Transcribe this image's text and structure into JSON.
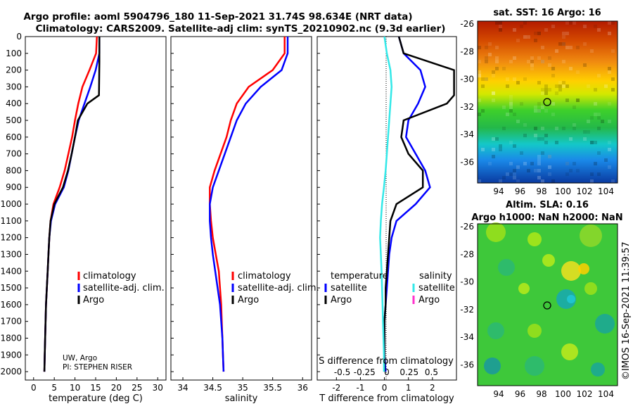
{
  "title": {
    "line1": "Argo profile: aoml 5904796_180 11-Sep-2021 31.74S 98.634E (NRT data)",
    "line2": "Climatology: CARS2009. Satellite-adj clim: synTS_20210902.nc (9.3d earlier)"
  },
  "colors": {
    "clim": "#ff0000",
    "sat": "#0000ff",
    "argo": "#000000",
    "sat_s": "#33e8e8",
    "argo_s": "#ff33cc"
  },
  "depth_ticks": [
    "0",
    "100",
    "200",
    "300",
    "400",
    "500",
    "600",
    "700",
    "800",
    "900",
    "1000",
    "1100",
    "1200",
    "1300",
    "1400",
    "1500",
    "1600",
    "1700",
    "1800",
    "1900",
    "2000"
  ],
  "panels": {
    "temperature": {
      "xlabel": "temperature (deg C)",
      "xticks": [
        "0",
        "5",
        "10",
        "15",
        "20",
        "25",
        "30"
      ],
      "legend": [
        "climatology",
        "satellite-adj. clim.",
        "Argo"
      ],
      "note1": "UW, Argo",
      "note2": "PI: STEPHEN RISER"
    },
    "salinity": {
      "xlabel": "salinity",
      "xticks": [
        "34",
        "34.5",
        "35",
        "35.5",
        "36"
      ],
      "legend": [
        "climatology",
        "satellite-adj. clim.",
        "Argo"
      ]
    },
    "difference": {
      "xlabel": "T difference from climatology",
      "toplabel": "S difference from climatology",
      "xticks": [
        "-2",
        "-1",
        "0",
        "1",
        "2"
      ],
      "sticks": [
        "-0.5",
        "-0.25",
        "0",
        "0.25",
        "0.5"
      ],
      "legend_head_t": "temperature",
      "legend_head_s": "salinity",
      "legend_t": [
        "satellite",
        "Argo"
      ],
      "legend_s": [
        "satellite",
        "Argo"
      ]
    }
  },
  "sst_map": {
    "title": "sat. SST: 16 Argo: 16",
    "yticks": [
      "-26",
      "-28",
      "-30",
      "-32",
      "-34",
      "-36"
    ],
    "xticks": [
      "94",
      "96",
      "98",
      "100",
      "102",
      "104"
    ]
  },
  "sla_map": {
    "title1": "Altim. SLA: 0.16",
    "title2": "Argo h1000: NaN h2000: NaN",
    "yticks": [
      "-26",
      "-28",
      "-30",
      "-32",
      "-34",
      "-36"
    ],
    "xticks": [
      "94",
      "96",
      "98",
      "100",
      "102",
      "104"
    ]
  },
  "credit": "©IMOS 16-Sep-2021 11:39:57",
  "chart_data": [
    {
      "type": "line",
      "title": "",
      "xlabel": "temperature (deg C)",
      "ylabel": "",
      "xlim": [
        -2,
        32
      ],
      "ylim": [
        2050,
        0
      ],
      "series": [
        {
          "name": "climatology",
          "x": [
            15.3,
            15.1,
            13.5,
            11.8,
            10.8,
            10.0,
            9.3,
            8.4,
            7.5,
            6.3,
            4.8,
            4.1,
            3.8,
            3.6,
            3.4,
            3.2,
            3.0,
            2.9,
            2.8,
            2.7,
            2.6
          ],
          "y": [
            0,
            100,
            200,
            300,
            400,
            500,
            600,
            700,
            800,
            900,
            1000,
            1100,
            1200,
            1300,
            1400,
            1500,
            1600,
            1700,
            1800,
            1900,
            2000
          ]
        },
        {
          "name": "satellite-adj. clim.",
          "x": [
            15.9,
            15.9,
            15.0,
            13.7,
            12.3,
            10.9,
            10.0,
            9.2,
            8.4,
            7.3,
            5.2,
            4.2,
            3.8,
            3.6,
            3.4,
            3.2,
            3.0,
            2.9,
            2.8,
            2.7,
            2.6
          ],
          "y": [
            0,
            100,
            200,
            300,
            400,
            500,
            600,
            700,
            800,
            900,
            1000,
            1100,
            1200,
            1300,
            1400,
            1500,
            1600,
            1700,
            1800,
            1900,
            2000
          ]
        },
        {
          "name": "Argo",
          "x": [
            15.9,
            15.9,
            15.9,
            15.8,
            13.0,
            10.7,
            10.0,
            9.2,
            8.3,
            7.1,
            5.0,
            4.1,
            3.8,
            3.6,
            3.4,
            3.2,
            3.0,
            2.9,
            2.8,
            2.7,
            2.6
          ],
          "y": [
            0,
            100,
            150,
            350,
            400,
            500,
            600,
            700,
            800,
            900,
            1000,
            1100,
            1200,
            1300,
            1400,
            1500,
            1600,
            1700,
            1800,
            1900,
            2000
          ]
        }
      ]
    },
    {
      "type": "line",
      "title": "",
      "xlabel": "salinity",
      "ylabel": "",
      "xlim": [
        33.8,
        36.15
      ],
      "ylim": [
        2050,
        0
      ],
      "series": [
        {
          "name": "climatology",
          "x": [
            35.7,
            35.7,
            35.5,
            35.1,
            34.9,
            34.8,
            34.73,
            34.63,
            34.53,
            34.45,
            34.45,
            34.47,
            34.5,
            34.55,
            34.6,
            34.62,
            34.64,
            34.65,
            34.66,
            34.67,
            34.68
          ],
          "y": [
            0,
            100,
            200,
            300,
            400,
            500,
            600,
            700,
            800,
            900,
            1000,
            1100,
            1200,
            1300,
            1400,
            1500,
            1600,
            1700,
            1800,
            1900,
            2000
          ]
        },
        {
          "name": "satellite-adj. clim.",
          "x": [
            35.75,
            35.75,
            35.65,
            35.3,
            35.05,
            34.9,
            34.8,
            34.7,
            34.6,
            34.5,
            34.45,
            34.45,
            34.47,
            34.5,
            34.54,
            34.58,
            34.62,
            34.64,
            34.66,
            34.67,
            34.68
          ],
          "y": [
            0,
            100,
            200,
            300,
            400,
            500,
            600,
            700,
            800,
            900,
            1000,
            1100,
            1200,
            1300,
            1400,
            1500,
            1600,
            1700,
            1800,
            1900,
            2000
          ]
        }
      ]
    },
    {
      "type": "line",
      "title": "",
      "xlabel": "T difference from climatology",
      "ylabel": "",
      "xlim": [
        -2.8,
        3.0
      ],
      "ylim": [
        2050,
        0
      ],
      "series": [
        {
          "name": "temperature satellite",
          "x": [
            0.6,
            0.8,
            1.5,
            1.7,
            1.4,
            1.0,
            0.9,
            1.3,
            1.7,
            1.9,
            1.3,
            0.5,
            0.3,
            0.2,
            0.15,
            0.1,
            0.05,
            0.0,
            0.0,
            0.0,
            0.05
          ],
          "y": [
            0,
            100,
            200,
            300,
            400,
            500,
            600,
            700,
            800,
            900,
            1000,
            1100,
            1200,
            1300,
            1400,
            1500,
            1600,
            1700,
            1800,
            1900,
            2000
          ]
        },
        {
          "name": "temperature Argo",
          "x": [
            0.6,
            0.8,
            2.9,
            2.9,
            2.6,
            0.8,
            0.7,
            1.0,
            1.6,
            1.6,
            0.5,
            0.25,
            0.2,
            0.15,
            0.1,
            0.05,
            0.05,
            0.0,
            0.0,
            0.0,
            0.0
          ],
          "y": [
            0,
            100,
            200,
            350,
            400,
            500,
            600,
            700,
            800,
            900,
            1000,
            1100,
            1200,
            1300,
            1400,
            1500,
            1600,
            1700,
            1800,
            1900,
            2000
          ]
        },
        {
          "name": "salinity satellite",
          "x": [
            0.0,
            0.1,
            0.25,
            0.3,
            0.25,
            0.2,
            0.15,
            0.1,
            0.05,
            -0.02,
            -0.1,
            -0.15,
            -0.18,
            -0.15,
            -0.12,
            -0.1,
            -0.08,
            -0.06,
            -0.04,
            -0.02,
            -0.02
          ],
          "y": [
            0,
            100,
            200,
            300,
            400,
            500,
            600,
            700,
            800,
            900,
            1000,
            1100,
            1200,
            1300,
            1400,
            1500,
            1600,
            1700,
            1800,
            1900,
            2000
          ]
        }
      ]
    }
  ]
}
